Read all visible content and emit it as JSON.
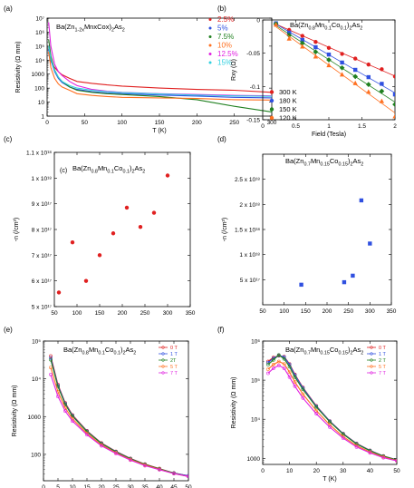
{
  "chart_data": [
    {
      "panel": "(a)",
      "type": "line",
      "title": "Ba(Zn1-2xMnxCox)2As2",
      "xlabel": "T (K)",
      "ylabel": "Resistivity (Ω mm)",
      "xlim": [
        0,
        300
      ],
      "ylim": [
        1,
        10000000
      ],
      "yscale": "log",
      "xticks": [
        0,
        50,
        100,
        150,
        200,
        250,
        300
      ],
      "yticks": [
        1,
        10,
        100,
        1000,
        10000,
        100000,
        1000000,
        10000000
      ],
      "yticklabels": [
        "1",
        "10",
        "100",
        "1000",
        "10⁴",
        "10⁵",
        "10⁶",
        "10⁷"
      ],
      "legend_placement": "top-right",
      "series": [
        {
          "name": "2.5%",
          "color": "#e02020",
          "x": [
            2,
            5,
            10,
            15,
            20,
            30,
            40,
            60,
            80,
            100,
            150,
            200,
            250,
            300
          ],
          "y": [
            30000,
            8000,
            3000,
            1500,
            900,
            500,
            300,
            220,
            170,
            140,
            100,
            80,
            70,
            50
          ]
        },
        {
          "name": "5%",
          "color": "#3050e0",
          "x": [
            2,
            5,
            10,
            15,
            20,
            30,
            40,
            60,
            80,
            100,
            150,
            200,
            250,
            300
          ],
          "y": [
            60000,
            10000,
            1500,
            500,
            250,
            120,
            80,
            55,
            45,
            40,
            32,
            27,
            22,
            20
          ]
        },
        {
          "name": "7.5%",
          "color": "#208020",
          "x": [
            2,
            5,
            10,
            15,
            20,
            30,
            40,
            60,
            80,
            100,
            150,
            200,
            250,
            300
          ],
          "y": [
            300000,
            20000,
            2000,
            600,
            300,
            120,
            70,
            50,
            40,
            35,
            25,
            15,
            5,
            2
          ]
        },
        {
          "name": "10%",
          "color": "#ff7020",
          "x": [
            2,
            5,
            10,
            15,
            20,
            30,
            40,
            60,
            80,
            100,
            150,
            200,
            250,
            300
          ],
          "y": [
            40000,
            3000,
            500,
            200,
            120,
            70,
            40,
            30,
            25,
            22,
            20,
            18,
            15,
            14
          ]
        },
        {
          "name": "12.5%",
          "color": "#e020e0",
          "x": [
            2,
            5,
            10,
            15,
            20,
            30,
            40,
            60,
            80,
            100,
            150,
            200,
            250,
            300
          ],
          "y": [
            5000000,
            100000,
            5000,
            1500,
            800,
            300,
            150,
            80,
            60,
            50,
            40,
            35,
            30,
            28
          ]
        },
        {
          "name": "15%",
          "color": "#30d0e0",
          "x": [
            2,
            5,
            10,
            15,
            20,
            30,
            40,
            60,
            80,
            100,
            150,
            200,
            250,
            300
          ],
          "y": [
            100000,
            12000,
            1800,
            600,
            300,
            150,
            100,
            70,
            55,
            48,
            38,
            32,
            28,
            26
          ]
        }
      ]
    },
    {
      "panel": "(b)",
      "type": "scatter",
      "title": "Ba(Zn0.8Mn0.1Co0.1)2As2",
      "xlabel": "Field (Tesla)",
      "ylabel": "Rxy (Ω)",
      "xlim": [
        0,
        2
      ],
      "ylim": [
        -0.15,
        0
      ],
      "xticks": [
        0,
        0.5,
        1,
        1.5,
        2
      ],
      "yticks": [
        0,
        -0.05,
        -0.1,
        -0.15
      ],
      "legend_placement": "bottom-left",
      "series": [
        {
          "name": "300 K",
          "color": "#e02020",
          "marker": "circle",
          "x": [
            0.2,
            0.4,
            0.6,
            0.8,
            1.0,
            1.2,
            1.4,
            1.6,
            1.8,
            2.0
          ],
          "y": [
            -0.005,
            -0.015,
            -0.024,
            -0.033,
            -0.042,
            -0.051,
            -0.058,
            -0.067,
            -0.074,
            -0.085
          ]
        },
        {
          "name": "180 K",
          "color": "#3050e0",
          "marker": "square",
          "x": [
            0.2,
            0.4,
            0.6,
            0.8,
            1.0,
            1.2,
            1.4,
            1.6,
            1.8,
            2.0
          ],
          "y": [
            -0.005,
            -0.019,
            -0.03,
            -0.041,
            -0.052,
            -0.064,
            -0.075,
            -0.086,
            -0.096,
            -0.112
          ]
        },
        {
          "name": "150 K",
          "color": "#208020",
          "marker": "diamond",
          "x": [
            0.2,
            0.4,
            0.6,
            0.8,
            1.0,
            1.2,
            1.4,
            1.6,
            1.8,
            2.0
          ],
          "y": [
            -0.006,
            -0.023,
            -0.035,
            -0.048,
            -0.06,
            -0.072,
            -0.085,
            -0.097,
            -0.107,
            -0.127
          ]
        },
        {
          "name": "120 K",
          "color": "#ff7020",
          "marker": "triangle",
          "x": [
            0.2,
            0.4,
            0.6,
            0.8,
            1.0,
            1.2,
            1.4,
            1.6,
            1.8,
            2.0
          ],
          "y": [
            -0.007,
            -0.028,
            -0.04,
            -0.055,
            -0.068,
            -0.082,
            -0.095,
            -0.108,
            -0.122,
            -0.145
          ]
        }
      ]
    },
    {
      "panel": "(c)",
      "type": "scatter",
      "title": "Ba(Zn0.8Mn0.1Co0.1)2As2",
      "inset_label": "(c)",
      "xlabel": "",
      "ylabel": "-n (/cm³)",
      "xlim": [
        50,
        350
      ],
      "ylim": [
        5e+17,
        1.1e+18
      ],
      "xticks": [
        50,
        100,
        150,
        200,
        250,
        300,
        350
      ],
      "yticks": [
        5e+17,
        6e+17,
        7e+17,
        8e+17,
        9e+17,
        1e+18,
        1.1e+18
      ],
      "yticklabels": [
        "5 x 10¹⁷",
        "6 x 10¹⁷",
        "7 x 10¹⁷",
        "8 x 10¹⁷",
        "9 x 10¹⁷",
        "1 x 10¹⁸",
        "1.1 x 10¹⁸"
      ],
      "series": [
        {
          "color": "#e02020",
          "marker": "circle",
          "x": [
            60,
            90,
            120,
            150,
            180,
            210,
            240,
            270,
            300
          ],
          "y": [
            5.55e+17,
            7.5e+17,
            6e+17,
            7e+17,
            7.85e+17,
            8.85e+17,
            8.1e+17,
            8.65e+17,
            1.01e+18
          ]
        }
      ]
    },
    {
      "panel": "(d)",
      "type": "scatter",
      "title": "Ba(Zn0.7Mn0.15Co0.15)2As2",
      "xlabel": "",
      "ylabel": "-n (/cm³)",
      "xlim": [
        50,
        350
      ],
      "ylim": [
        0,
        3e+18
      ],
      "xticks": [
        50,
        100,
        150,
        200,
        250,
        300,
        350
      ],
      "yticks": [
        5e+17,
        1e+18,
        1.5e+18,
        2e+18,
        2.5e+18
      ],
      "yticklabels": [
        "5 x 10¹⁷",
        "1 x 10¹⁸",
        "1.5 x 10¹⁸",
        "2 x 10¹⁸",
        "2.5 x 10¹⁸"
      ],
      "series": [
        {
          "color": "#3050e0",
          "marker": "square",
          "x": [
            140,
            240,
            260,
            280,
            300
          ],
          "y": [
            4e+17,
            4.5e+17,
            5.8e+17,
            2.08e+18,
            1.22e+18
          ]
        }
      ]
    },
    {
      "panel": "(e)",
      "type": "line",
      "title": "Ba(Zn0.8Mn0.1Co0.1)2As2",
      "xlabel": "T (K)",
      "ylabel": "Resistivity (Ω mm)",
      "xlim": [
        0,
        50
      ],
      "ylim": [
        20,
        100000
      ],
      "yscale": "log",
      "xticks": [
        0,
        5,
        10,
        15,
        20,
        25,
        30,
        35,
        40,
        45,
        50
      ],
      "yticks": [
        100,
        1000,
        10000,
        100000
      ],
      "yticklabels": [
        "100",
        "1000",
        "10⁴",
        "10⁵"
      ],
      "legend_placement": "top-right",
      "series": [
        {
          "name": "0 T",
          "color": "#e02020",
          "x": [
            2.5,
            5,
            7.5,
            10,
            15,
            20,
            25,
            30,
            35,
            40,
            45,
            50
          ],
          "y": [
            40000,
            7000,
            2300,
            1100,
            420,
            200,
            120,
            78,
            55,
            42,
            32,
            27
          ]
        },
        {
          "name": "1 T",
          "color": "#3050e0",
          "x": [
            2.5,
            5,
            7.5,
            10,
            15,
            20,
            25,
            30,
            35,
            40,
            45,
            50
          ],
          "y": [
            36000,
            6600,
            2200,
            1060,
            410,
            195,
            118,
            77,
            54,
            41,
            32,
            27
          ]
        },
        {
          "name": "2T",
          "color": "#208020",
          "x": [
            2.5,
            5,
            7.5,
            10,
            15,
            20,
            25,
            30,
            35,
            40,
            45,
            50
          ],
          "y": [
            32000,
            6200,
            2100,
            1020,
            400,
            192,
            116,
            76,
            54,
            41,
            32,
            26
          ]
        },
        {
          "name": "5 T",
          "color": "#ff7020",
          "x": [
            2.5,
            5,
            7.5,
            10,
            15,
            20,
            25,
            30,
            35,
            40,
            45,
            50
          ],
          "y": [
            20000,
            4500,
            1700,
            870,
            360,
            178,
            110,
            73,
            52,
            40,
            31,
            26
          ]
        },
        {
          "name": "7 T",
          "color": "#e020e0",
          "x": [
            2.5,
            5,
            7.5,
            10,
            15,
            20,
            25,
            30,
            35,
            40,
            45,
            50
          ],
          "y": [
            13000,
            3400,
            1400,
            760,
            330,
            168,
            105,
            70,
            50,
            39,
            31,
            26
          ]
        }
      ]
    },
    {
      "panel": "(f)",
      "type": "line",
      "title": "Ba(Zn0.7Mn0.15Co0.15)2As2",
      "xlabel": "T (K)",
      "ylabel": "Resistivity (Ω mm)",
      "xlim": [
        0,
        50
      ],
      "ylim": [
        700,
        1000000
      ],
      "yscale": "log",
      "xticks": [
        0,
        10,
        20,
        30,
        40,
        50
      ],
      "yticks": [
        1000,
        10000,
        100000,
        1000000
      ],
      "yticklabels": [
        "1000",
        "10⁴",
        "10⁵",
        "10⁶"
      ],
      "legend_placement": "top-right",
      "series": [
        {
          "name": "0 T",
          "color": "#e02020",
          "x": [
            2,
            4,
            6,
            8,
            10,
            12,
            15,
            20,
            25,
            30,
            35,
            40,
            45,
            50
          ],
          "y": [
            300000,
            380000,
            420000,
            400000,
            260000,
            140000,
            65000,
            22000,
            9000,
            4300,
            2400,
            1600,
            1150,
            920
          ]
        },
        {
          "name": "1 T",
          "color": "#3050e0",
          "x": [
            2,
            4,
            6,
            8,
            10,
            12,
            15,
            20,
            25,
            30,
            35,
            40,
            45,
            50
          ],
          "y": [
            280000,
            360000,
            430000,
            390000,
            250000,
            135000,
            63000,
            21500,
            8900,
            4250,
            2380,
            1590,
            1140,
            915
          ]
        },
        {
          "name": "2 T",
          "color": "#208020",
          "x": [
            2,
            4,
            6,
            8,
            10,
            12,
            15,
            20,
            25,
            30,
            35,
            40,
            45,
            50
          ],
          "y": [
            250000,
            330000,
            440000,
            350000,
            220000,
            120000,
            58000,
            20500,
            8600,
            4150,
            2330,
            1560,
            1130,
            910
          ]
        },
        {
          "name": "5 T",
          "color": "#ff7020",
          "x": [
            2,
            4,
            6,
            8,
            10,
            12,
            15,
            20,
            25,
            30,
            35,
            40,
            45,
            50
          ],
          "y": [
            190000,
            250000,
            300000,
            260000,
            160000,
            90000,
            44000,
            16500,
            7200,
            3600,
            2100,
            1450,
            1080,
            880
          ]
        },
        {
          "name": "7 T",
          "color": "#e020e0",
          "x": [
            2,
            4,
            6,
            8,
            10,
            12,
            15,
            20,
            25,
            30,
            35,
            40,
            45,
            50
          ],
          "y": [
            150000,
            200000,
            240000,
            200000,
            120000,
            70000,
            35000,
            13800,
            6300,
            3300,
            1950,
            1380,
            1040,
            860
          ]
        }
      ]
    }
  ]
}
